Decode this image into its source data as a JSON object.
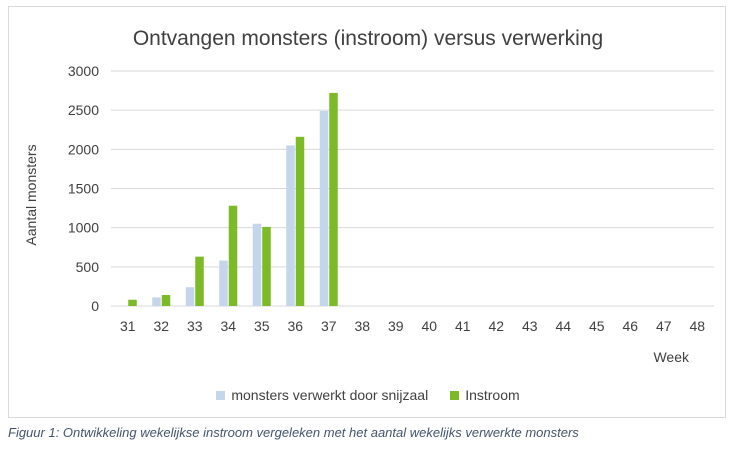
{
  "chart_data": {
    "type": "bar",
    "title": "Ontvangen monsters (instroom) versus verwerking",
    "xlabel": "Week",
    "ylabel": "Aantal monsters",
    "categories": [
      "31",
      "32",
      "33",
      "34",
      "35",
      "36",
      "37",
      "38",
      "39",
      "40",
      "41",
      "42",
      "43",
      "44",
      "45",
      "46",
      "47",
      "48"
    ],
    "ylim": [
      0,
      3000
    ],
    "yticks": [
      "0",
      "500",
      "1000",
      "1500",
      "2000",
      "2500",
      "3000"
    ],
    "grid": true,
    "legend_position": "bottom",
    "series": [
      {
        "name": "monsters verwerkt door snijzaal",
        "color": "#c5d6ec",
        "values": [
          0,
          110,
          240,
          580,
          1050,
          2050,
          2490,
          null,
          null,
          null,
          null,
          null,
          null,
          null,
          null,
          null,
          null,
          null
        ]
      },
      {
        "name": "Instroom",
        "color": "#7cba27",
        "values": [
          80,
          140,
          630,
          1280,
          1010,
          2160,
          2720,
          null,
          null,
          null,
          null,
          null,
          null,
          null,
          null,
          null,
          null,
          null
        ]
      }
    ]
  },
  "caption": "Figuur 1: Ontwikkeling wekelijkse instroom vergeleken met het aantal wekelijks verwerkte monsters"
}
